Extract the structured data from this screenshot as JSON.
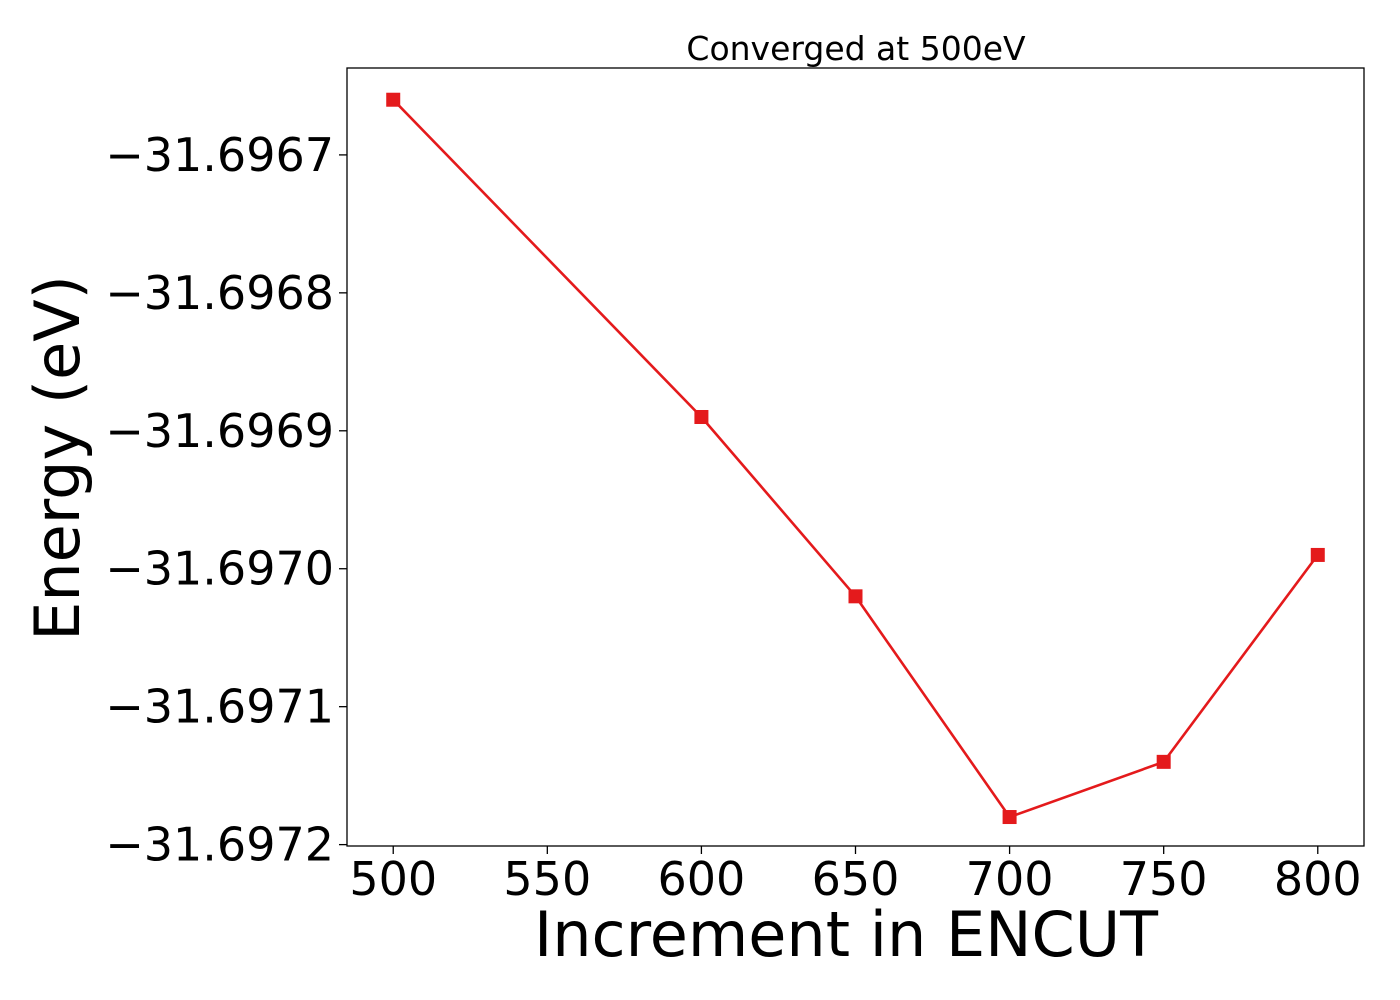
{
  "chart_data": {
    "type": "line",
    "title": "Converged at 500eV",
    "xlabel": "Increment in ENCUT",
    "ylabel": "Energy (eV)",
    "x": [
      500,
      600,
      650,
      700,
      750,
      800
    ],
    "series": [
      {
        "values": [
          -31.69666,
          -31.69689,
          -31.69702,
          -31.69718,
          -31.69714,
          -31.69699
        ],
        "color": "#e41a1c",
        "marker": "square"
      }
    ],
    "xticks": [
      500,
      550,
      600,
      650,
      700,
      750,
      800
    ],
    "xtick_labels": [
      "500",
      "550",
      "600",
      "650",
      "700",
      "750",
      "800"
    ],
    "yticks": [
      -31.6967,
      -31.6968,
      -31.6969,
      -31.697,
      -31.6971,
      -31.6972
    ],
    "ytick_labels": [
      "−31.6967",
      "−31.6968",
      "−31.6969",
      "−31.6970",
      "−31.6971",
      "−31.6972"
    ],
    "xlim": [
      485,
      815
    ],
    "ylim": [
      -31.697201,
      -31.696637
    ],
    "grid": false,
    "legend": false
  }
}
